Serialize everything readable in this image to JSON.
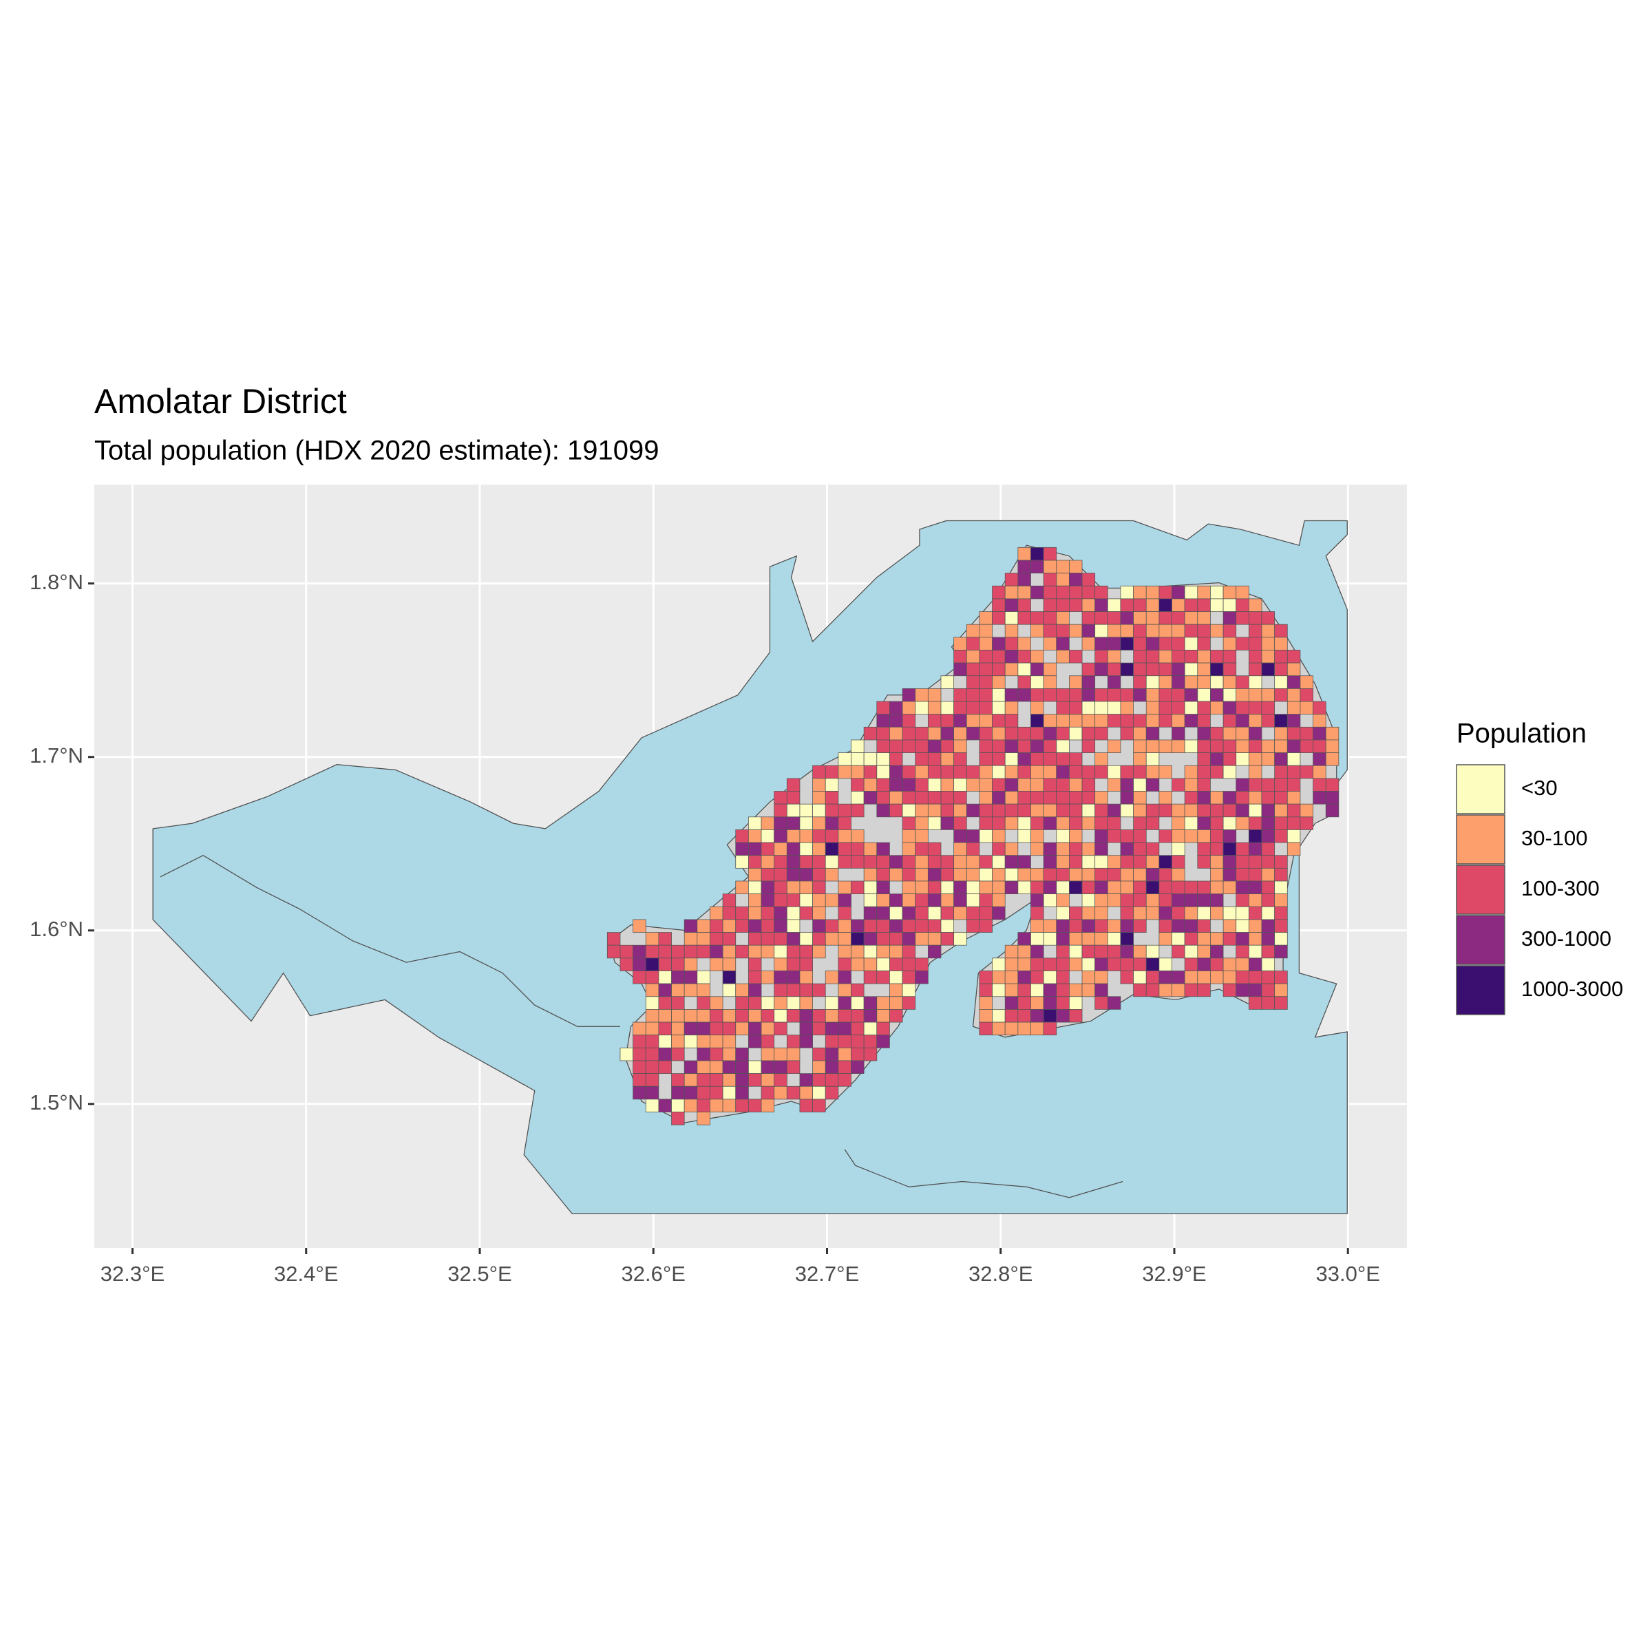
{
  "chart_data": {
    "type": "map",
    "title": "Amolatar District",
    "subtitle": "Total population (HDX 2020 estimate): 191099",
    "xlim": [
      32.278,
      33.034
    ],
    "ylim": [
      1.417,
      1.857
    ],
    "xticks": [
      {
        "value": 32.3,
        "label": "32.3°E"
      },
      {
        "value": 32.4,
        "label": "32.4°E"
      },
      {
        "value": 32.5,
        "label": "32.5°E"
      },
      {
        "value": 32.6,
        "label": "32.6°E"
      },
      {
        "value": 32.7,
        "label": "32.7°E"
      },
      {
        "value": 32.8,
        "label": "32.8°E"
      },
      {
        "value": 32.9,
        "label": "32.9°E"
      },
      {
        "value": 33.0,
        "label": "33.0°E"
      }
    ],
    "yticks": [
      {
        "value": 1.5,
        "label": "1.5°N"
      },
      {
        "value": 1.6,
        "label": "1.6°N"
      },
      {
        "value": 1.7,
        "label": "1.7°N"
      },
      {
        "value": 1.8,
        "label": "1.8°N"
      }
    ],
    "grid": true,
    "legend": {
      "title": "Population",
      "position": "right",
      "categories": [
        "<30",
        "30-100",
        "100-300",
        "300-1000",
        "1000-3000"
      ],
      "colors": [
        "#fcfdbf",
        "#fd9f6c",
        "#de4968",
        "#8c2981",
        "#3b0f70"
      ]
    },
    "land_color": "#d3d3d3",
    "water_color": "#add8e6"
  }
}
